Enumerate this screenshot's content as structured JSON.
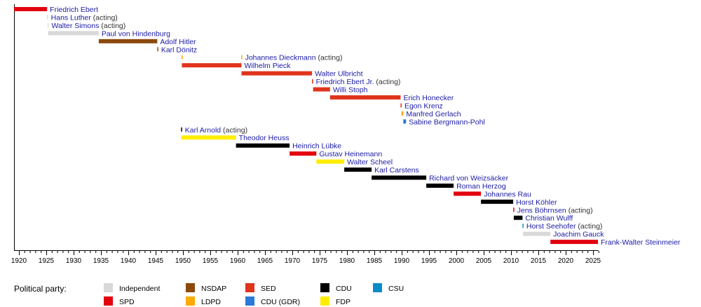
{
  "chart_data": {
    "type": "timeline",
    "xlim": [
      1919,
      2026
    ],
    "x_ticks": [
      "1920",
      "1925",
      "1930",
      "1935",
      "1940",
      "1945",
      "1950",
      "1955",
      "1960",
      "1965",
      "1970",
      "1975",
      "1980",
      "1985",
      "1990",
      "1995",
      "2000",
      "2005",
      "2010",
      "2015",
      "2020",
      "2025"
    ],
    "legend_title": "Political party:",
    "parties": [
      {
        "key": "Independent",
        "label": "Independent",
        "color": "#d9d9d9"
      },
      {
        "key": "SPD",
        "label": "SPD",
        "color": "#e3000f"
      },
      {
        "key": "NSDAP",
        "label": "NSDAP",
        "color": "#8b4a0c"
      },
      {
        "key": "LDPD",
        "label": "LDPD",
        "color": "#ffaa00"
      },
      {
        "key": "SED",
        "label": "SED",
        "color": "#e0341c"
      },
      {
        "key": "CDU (GDR)",
        "label": "CDU (GDR)",
        "color": "#2a7ad8"
      },
      {
        "key": "CDU",
        "label": "CDU",
        "color": "#000000"
      },
      {
        "key": "FDP",
        "label": "FDP",
        "color": "#ffed00"
      },
      {
        "key": "CSU",
        "label": "CSU",
        "color": "#0a8cc8"
      }
    ],
    "rows": [
      {
        "name": "Friedrich Ebert",
        "note": "",
        "spans": [
          {
            "start": 1919.1,
            "end": 1925.15,
            "party": "SPD"
          }
        ]
      },
      {
        "name": "Hans Luther",
        "note": "(acting)",
        "spans": [
          {
            "start": 1925.15,
            "end": 1925.3,
            "party": "Independent"
          }
        ]
      },
      {
        "name": "Walter Simons",
        "note": "(acting)",
        "spans": [
          {
            "start": 1925.25,
            "end": 1925.35,
            "party": "Independent"
          }
        ]
      },
      {
        "name": "Paul von Hindenburg",
        "note": "",
        "spans": [
          {
            "start": 1925.35,
            "end": 1934.6,
            "party": "Independent"
          }
        ]
      },
      {
        "name": "Adolf Hitler",
        "note": "",
        "spans": [
          {
            "start": 1934.6,
            "end": 1945.3,
            "party": "NSDAP"
          }
        ]
      },
      {
        "name": "Karl Dönitz",
        "note": "",
        "spans": [
          {
            "start": 1945.3,
            "end": 1945.4,
            "party": "NSDAP"
          }
        ]
      },
      {
        "name": "Johannes Dieckmann",
        "note": "(acting)",
        "spans": [
          {
            "start": 1949.75,
            "end": 1949.8,
            "party": "LDPD"
          },
          {
            "start": 1960.65,
            "end": 1960.7,
            "party": "LDPD"
          }
        ]
      },
      {
        "name": "Wilhelm Pieck",
        "note": "",
        "spans": [
          {
            "start": 1949.8,
            "end": 1960.7,
            "party": "SED"
          }
        ]
      },
      {
        "name": "Walter Ulbricht",
        "note": "",
        "spans": [
          {
            "start": 1960.7,
            "end": 1973.6,
            "party": "SED"
          }
        ]
      },
      {
        "name": "Friedrich Ebert Jr.",
        "note": "(acting)",
        "spans": [
          {
            "start": 1973.6,
            "end": 1973.8,
            "party": "SED"
          }
        ]
      },
      {
        "name": "Willi Stoph",
        "note": "",
        "spans": [
          {
            "start": 1973.8,
            "end": 1976.9,
            "party": "SED"
          }
        ]
      },
      {
        "name": "Erich Honecker",
        "note": "",
        "spans": [
          {
            "start": 1976.9,
            "end": 1989.8,
            "party": "SED"
          }
        ]
      },
      {
        "name": "Egon Krenz",
        "note": "",
        "spans": [
          {
            "start": 1989.8,
            "end": 1989.95,
            "party": "SED"
          }
        ]
      },
      {
        "name": "Manfred Gerlach",
        "note": "",
        "spans": [
          {
            "start": 1989.95,
            "end": 1990.3,
            "party": "LDPD"
          }
        ]
      },
      {
        "name": "Sabine Bergmann-Pohl",
        "note": "",
        "spans": [
          {
            "start": 1990.3,
            "end": 1990.8,
            "party": "CDU (GDR)"
          }
        ]
      },
      {
        "name": "Karl Arnold",
        "note": "(acting)",
        "spans": [
          {
            "start": 1949.65,
            "end": 1949.7,
            "party": "CDU"
          }
        ]
      },
      {
        "name": "Theodor Heuss",
        "note": "",
        "spans": [
          {
            "start": 1949.7,
            "end": 1959.7,
            "party": "FDP"
          }
        ]
      },
      {
        "name": "Heinrich Lübke",
        "note": "",
        "spans": [
          {
            "start": 1959.7,
            "end": 1969.5,
            "party": "CDU"
          }
        ]
      },
      {
        "name": "Gustav Heinemann",
        "note": "",
        "spans": [
          {
            "start": 1969.5,
            "end": 1974.4,
            "party": "SPD"
          }
        ]
      },
      {
        "name": "Walter Scheel",
        "note": "",
        "spans": [
          {
            "start": 1974.4,
            "end": 1979.5,
            "party": "FDP"
          }
        ]
      },
      {
        "name": "Karl Carstens",
        "note": "",
        "spans": [
          {
            "start": 1979.5,
            "end": 1984.5,
            "party": "CDU"
          }
        ]
      },
      {
        "name": "Richard von Weizsäcker",
        "note": "",
        "spans": [
          {
            "start": 1984.5,
            "end": 1994.5,
            "party": "CDU"
          }
        ]
      },
      {
        "name": "Roman Herzog",
        "note": "",
        "spans": [
          {
            "start": 1994.5,
            "end": 1999.5,
            "party": "CDU"
          }
        ]
      },
      {
        "name": "Johannes Rau",
        "note": "",
        "spans": [
          {
            "start": 1999.5,
            "end": 2004.5,
            "party": "SPD"
          }
        ]
      },
      {
        "name": "Horst Köhler",
        "note": "",
        "spans": [
          {
            "start": 2004.5,
            "end": 2010.4,
            "party": "CDU"
          }
        ]
      },
      {
        "name": "Jens Böhrnsen",
        "note": "(acting)",
        "spans": [
          {
            "start": 2010.4,
            "end": 2010.5,
            "party": "SPD"
          }
        ]
      },
      {
        "name": "Christian Wulff",
        "note": "",
        "spans": [
          {
            "start": 2010.5,
            "end": 2012.1,
            "party": "CDU"
          }
        ]
      },
      {
        "name": "Horst Seehofer",
        "note": "(acting)",
        "spans": [
          {
            "start": 2012.1,
            "end": 2012.2,
            "party": "CSU"
          }
        ]
      },
      {
        "name": "Joachim Gauck",
        "note": "",
        "spans": [
          {
            "start": 2012.2,
            "end": 2017.2,
            "party": "Independent"
          }
        ]
      },
      {
        "name": "Frank-Walter Steinmeier",
        "note": "",
        "spans": [
          {
            "start": 2017.2,
            "end": 2025.9,
            "party": "SPD"
          }
        ]
      }
    ]
  }
}
